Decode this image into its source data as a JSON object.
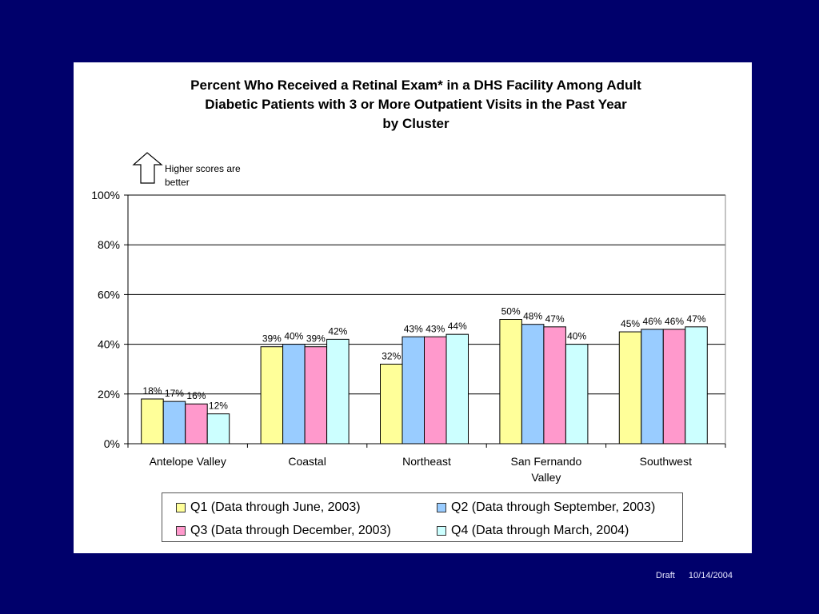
{
  "footer": {
    "status": "Draft",
    "date": "10/14/2004"
  },
  "note": {
    "icon": "up-arrow-icon",
    "line1": "Higher scores are",
    "line2": "better"
  },
  "chart_data": {
    "type": "bar",
    "title_lines": [
      "Percent Who Received a Retinal Exam* in a DHS Facility Among Adult",
      "Diabetic Patients with 3 or More Outpatient Visits in the Past Year",
      "by Cluster"
    ],
    "xlabel": "",
    "ylabel": "",
    "ylim": [
      0,
      100
    ],
    "yticks": [
      "0%",
      "20%",
      "40%",
      "60%",
      "80%",
      "100%"
    ],
    "grid": true,
    "legend_position": "bottom",
    "categories": [
      [
        "Antelope Valley"
      ],
      [
        "Coastal"
      ],
      [
        "Northeast"
      ],
      [
        "San Fernando",
        "Valley"
      ],
      [
        "Southwest"
      ]
    ],
    "series": [
      {
        "name": "Q1 (Data through June, 2003)",
        "color": "#ffff99",
        "values": [
          18,
          39,
          32,
          50,
          45
        ]
      },
      {
        "name": "Q2 (Data through September, 2003)",
        "color": "#99ccff",
        "values": [
          17,
          40,
          43,
          48,
          46
        ]
      },
      {
        "name": "Q3 (Data through December, 2003)",
        "color": "#ff99cc",
        "values": [
          16,
          39,
          43,
          47,
          46
        ]
      },
      {
        "name": "Q4 (Data through March, 2004)",
        "color": "#ccffff",
        "values": [
          12,
          42,
          44,
          40,
          47
        ]
      }
    ],
    "value_suffix": "%"
  }
}
